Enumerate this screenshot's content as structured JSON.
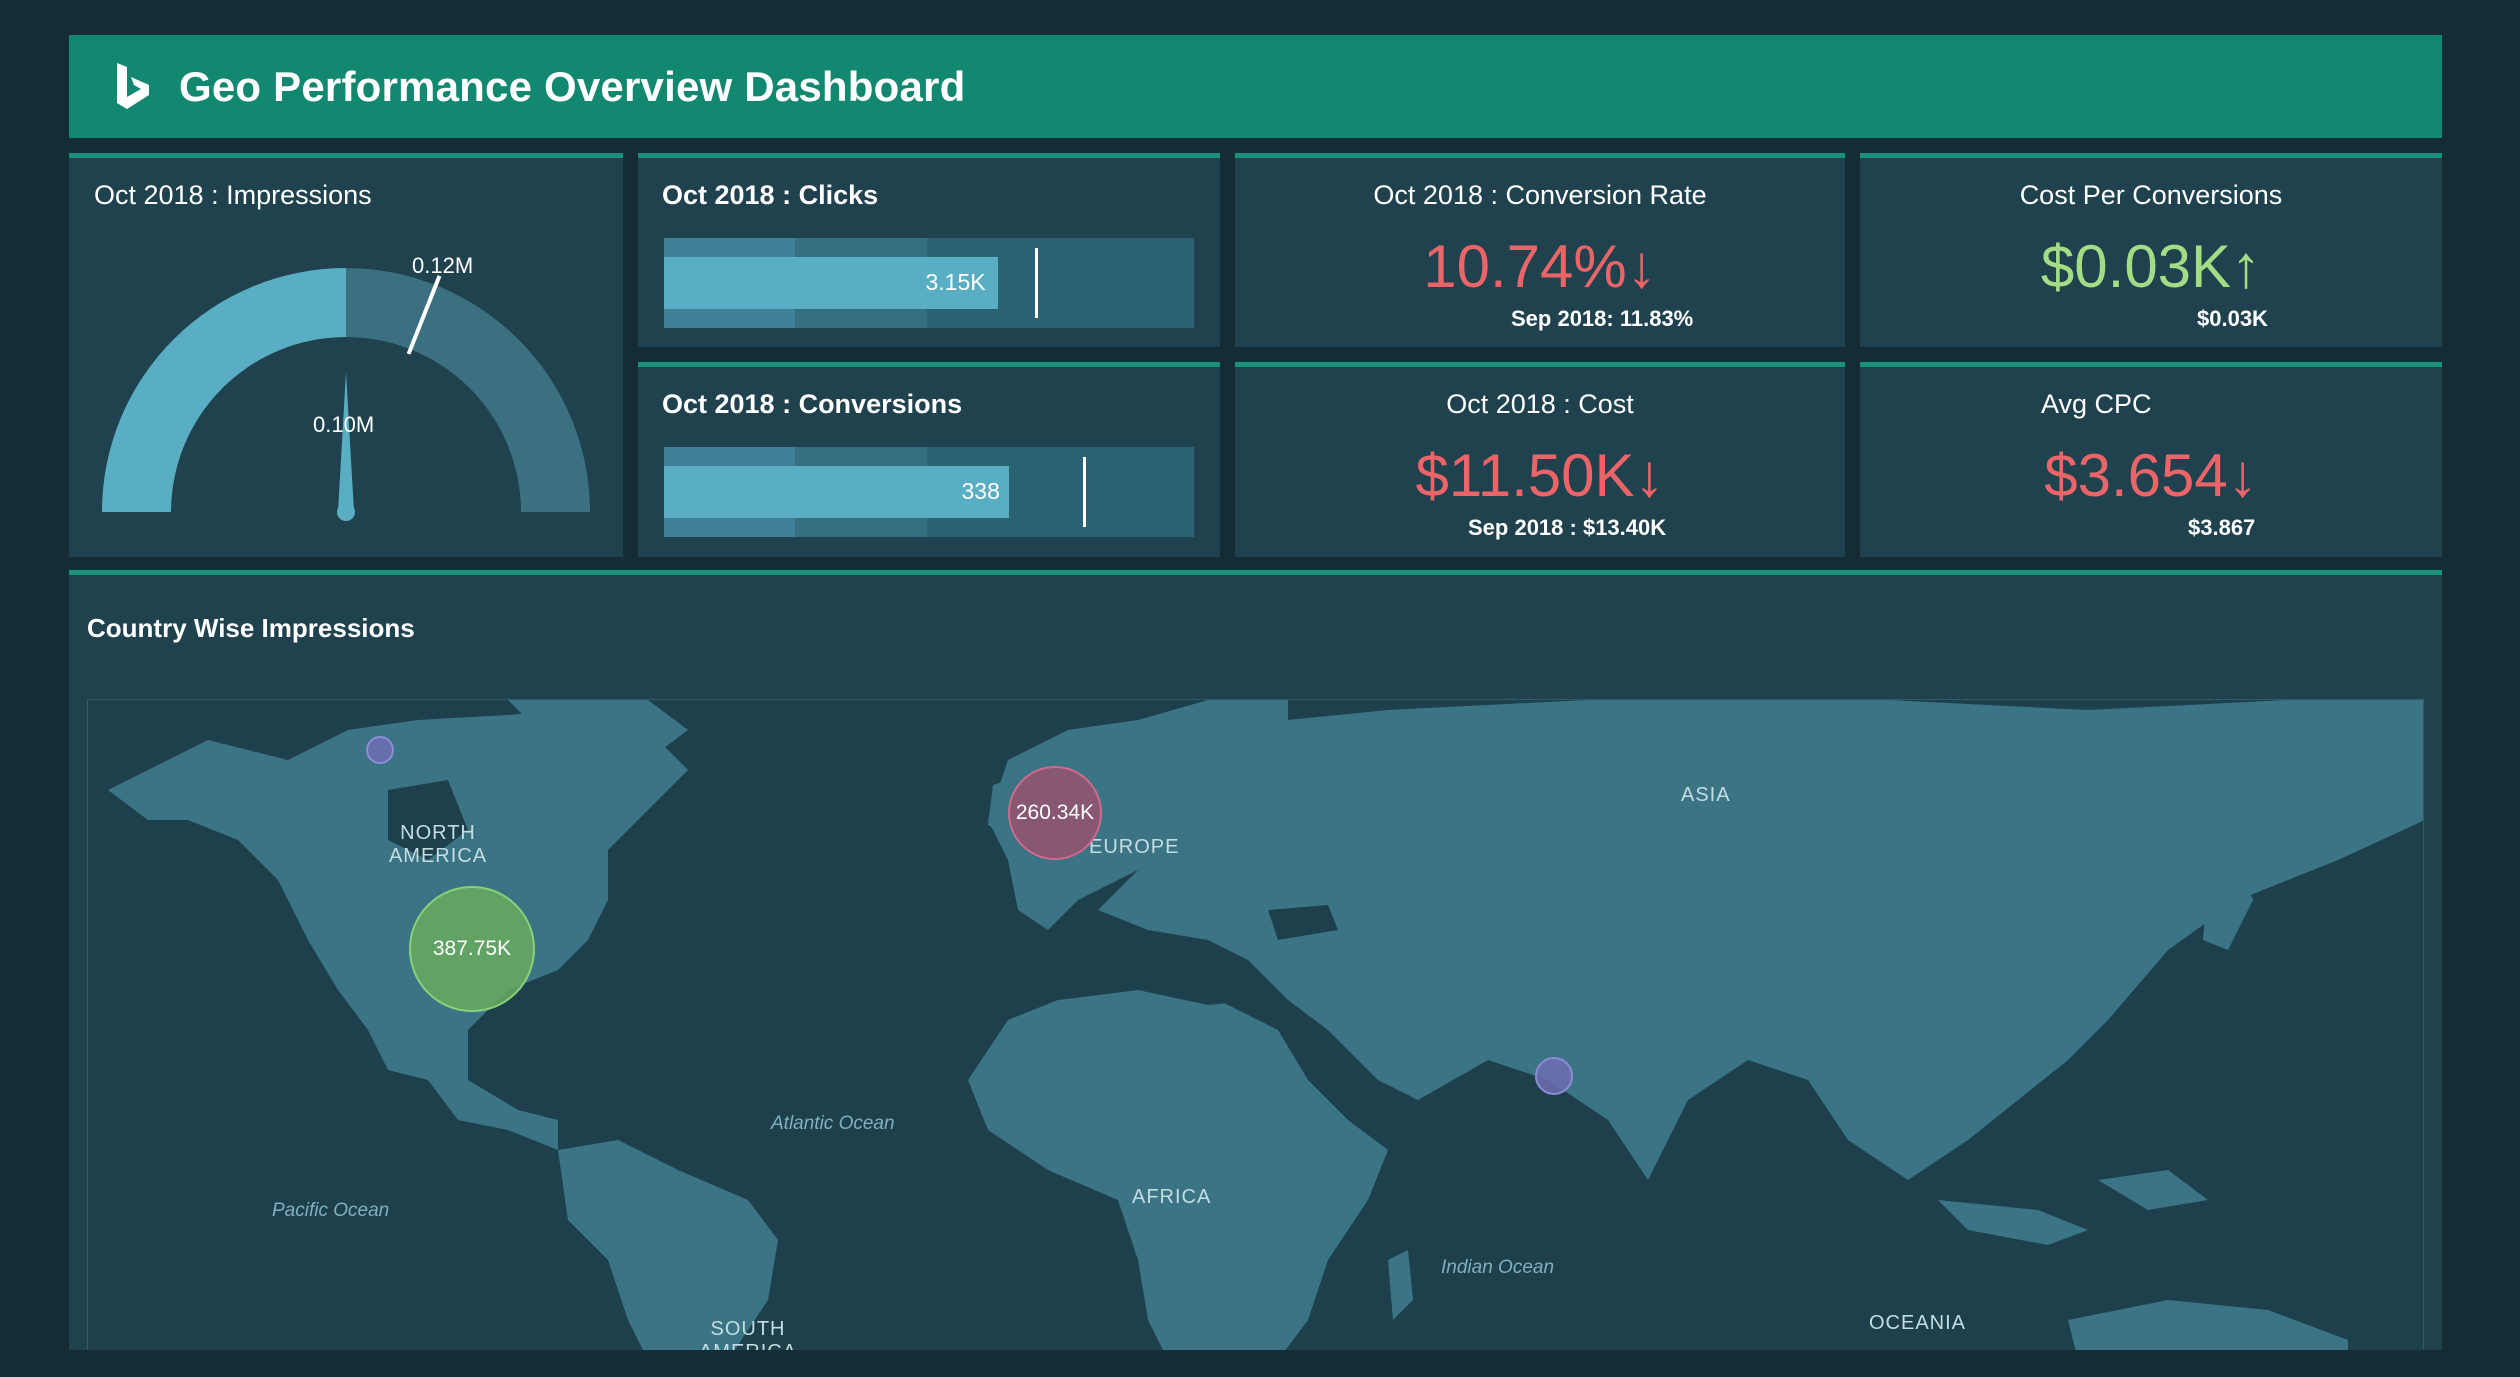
{
  "header": {
    "title": "Geo Performance Overview Dashboard",
    "logo_icon": "bing-logo-icon"
  },
  "colors": {
    "header_bg": "#128870",
    "card_bg": "#1f424e",
    "page_bg": "#132c35",
    "negative": "#ea6468",
    "positive": "#a3dc85",
    "bar": "#5aaec3",
    "land": "#3b7585"
  },
  "impressions": {
    "title": "Oct 2018 : Impressions",
    "target_label": "0.12M",
    "needle_label": "0.10M",
    "value_fraction_of_max": 0.5,
    "target_fraction_of_max": 0.62
  },
  "clicks": {
    "title": "Oct 2018 : Clicks",
    "value_label": "3.15K",
    "bar_fraction": 0.63,
    "target_fraction": 0.7
  },
  "conversions": {
    "title": "Oct 2018 : Conversions",
    "value_label": "338",
    "bar_fraction": 0.65,
    "target_fraction": 0.79
  },
  "conversion_rate": {
    "title": "Oct 2018 : Conversion Rate",
    "value": "10.74%↓",
    "comparison": "Sep 2018: 11.83%"
  },
  "cost_per_conversion": {
    "title": "Cost Per Conversions",
    "value": "$0.03K↑",
    "comparison": "$0.03K"
  },
  "cost": {
    "title": "Oct 2018 : Cost",
    "value": "$11.50K↓",
    "comparison": "Sep 2018 : $13.40K"
  },
  "avg_cpc": {
    "title": "Avg CPC",
    "value": "$3.654↓",
    "comparison": "$3.867"
  },
  "map": {
    "title": "Country Wise Impressions",
    "labels": {
      "north_america_1": "NORTH",
      "north_america_2": "AMERICA",
      "europe": "EUROPE",
      "asia": "ASIA",
      "africa": "AFRICA",
      "south_america_1": "SOUTH",
      "south_america_2": "AMERICA",
      "oceania": "OCEANIA"
    },
    "oceans": {
      "atlantic": "Atlantic Ocean",
      "pacific": "Pacific Ocean",
      "indian": "Indian Ocean"
    },
    "bubbles": [
      {
        "country": "United States",
        "label": "387.75K",
        "value": 387750,
        "color": "#6aaa5e"
      },
      {
        "country": "United Kingdom",
        "label": "260.34K",
        "value": 260340,
        "color": "#a34f6e"
      },
      {
        "country": "Canada",
        "label": "",
        "color": "#6f6fb3"
      },
      {
        "country": "India",
        "label": "",
        "color": "#6f6fb3"
      }
    ]
  }
}
